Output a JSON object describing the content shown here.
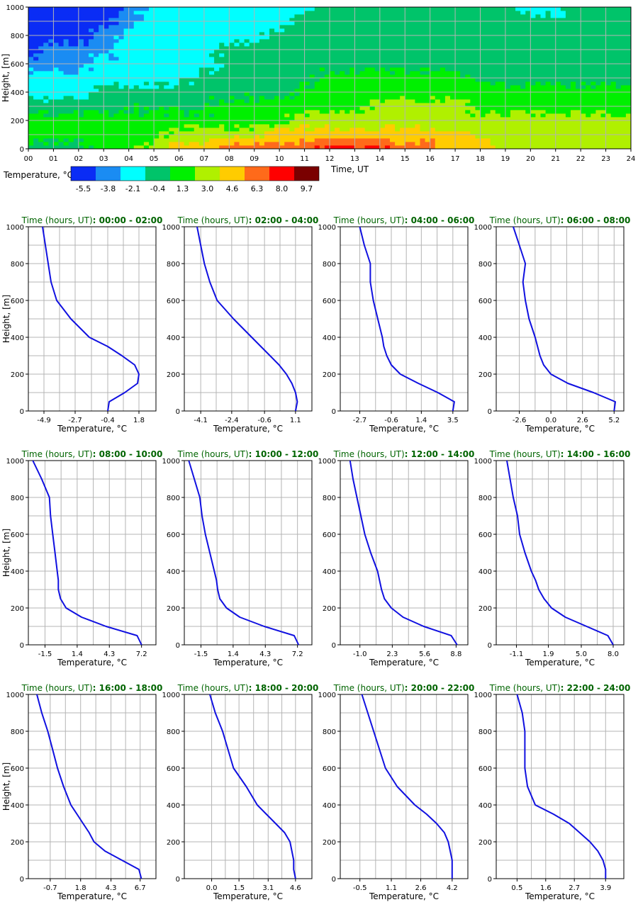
{
  "colors": {
    "levels": [
      "#0a2cf5",
      "#1a8cf3",
      "#00ffff",
      "#00c46a",
      "#00f000",
      "#b0f000",
      "#ffcc00",
      "#ff6a1a",
      "#ff0000",
      "#7a0000"
    ],
    "profile_line": "#1010e0",
    "panel_title": "#006400",
    "grid": "#b4b4b4"
  },
  "heatmap": {
    "ylabel": "Height, [m]",
    "xlabel": "Time, UT",
    "yticks": [
      "0",
      "200",
      "400",
      "600",
      "800",
      "1000"
    ],
    "xticks": [
      "00",
      "01",
      "02",
      "03",
      "04",
      "05",
      "06",
      "07",
      "08",
      "09",
      "10",
      "11",
      "12",
      "13",
      "14",
      "15",
      "16",
      "17",
      "18",
      "19",
      "20",
      "21",
      "22",
      "23",
      "24"
    ]
  },
  "colorbar": {
    "label": "Temperature, °C",
    "ticks": [
      "-5.5",
      "-3.8",
      "-2.1",
      "-0.4",
      "1.3",
      "3.0",
      "4.6",
      "6.3",
      "8.0",
      "9.7"
    ]
  },
  "profiles": {
    "ylabel": "Height, [m]",
    "xlabel": "Temperature, °C",
    "yticks": [
      "0",
      "200",
      "400",
      "600",
      "800",
      "1000"
    ]
  },
  "chart_data": [
    {
      "type": "heatmap",
      "xlabel": "Time, UT",
      "ylabel": "Height, [m]",
      "x_range": [
        0,
        24
      ],
      "y_range": [
        0,
        1000
      ],
      "colorbar_label": "Temperature, °C",
      "levels": [
        -5.5,
        -3.8,
        -2.1,
        -0.4,
        1.3,
        3.0,
        4.6,
        6.3,
        8.0,
        9.7
      ],
      "grid": true,
      "heights_m": [
        0,
        100,
        200,
        300,
        400,
        500,
        600,
        700,
        800,
        900,
        1000
      ],
      "hourly_profiles": [
        [
          -0.4,
          1.3,
          1.3,
          -0.4,
          -2.1,
          -2.1,
          -3.8,
          -5.5,
          -5.5,
          -5.5,
          -5.5
        ],
        [
          -0.4,
          1.3,
          1.3,
          -0.4,
          -2.1,
          -2.1,
          -3.8,
          -3.8,
          -5.5,
          -5.5,
          -5.5
        ],
        [
          -0.4,
          1.3,
          1.3,
          0.0,
          -2.1,
          -2.1,
          -3.8,
          -3.8,
          -5.5,
          -5.5,
          -5.5
        ],
        [
          1.3,
          1.3,
          1.3,
          0.0,
          -0.4,
          -2.1,
          -2.1,
          -3.8,
          -3.8,
          -5.5,
          -5.5
        ],
        [
          1.5,
          1.3,
          1.3,
          0.0,
          -0.4,
          -2.1,
          -2.1,
          -2.1,
          -2.1,
          -3.8,
          -3.8
        ],
        [
          3.0,
          1.3,
          1.3,
          0.0,
          -0.4,
          -2.1,
          -2.1,
          -2.1,
          -2.1,
          -2.1,
          -2.1
        ],
        [
          4.6,
          3.0,
          1.3,
          0.0,
          -0.4,
          -2.1,
          -2.1,
          -2.1,
          -2.1,
          -2.1,
          -2.1
        ],
        [
          4.6,
          3.0,
          1.3,
          0.0,
          -0.4,
          -0.4,
          -2.1,
          -2.1,
          -2.1,
          -2.1,
          -2.1
        ],
        [
          6.3,
          3.0,
          1.3,
          1.3,
          -0.4,
          -0.4,
          -0.4,
          -0.4,
          -2.1,
          -2.1,
          -2.1
        ],
        [
          6.3,
          3.0,
          1.3,
          1.3,
          0.0,
          -0.4,
          -0.4,
          -0.4,
          -2.1,
          -2.1,
          -2.1
        ],
        [
          6.3,
          4.6,
          1.3,
          1.3,
          0.0,
          -0.4,
          -0.4,
          -0.4,
          -0.4,
          -2.1,
          -2.1
        ],
        [
          6.3,
          4.6,
          3.0,
          1.3,
          1.3,
          -0.4,
          -0.4,
          -0.4,
          -0.4,
          -0.4,
          -2.1
        ],
        [
          8.0,
          4.6,
          3.0,
          1.3,
          1.3,
          1.3,
          -0.4,
          -0.4,
          -0.4,
          -0.4,
          -0.4
        ],
        [
          8.0,
          4.6,
          3.0,
          1.3,
          1.3,
          1.3,
          -0.4,
          -0.4,
          -0.4,
          -0.4,
          -0.4
        ],
        [
          8.0,
          4.6,
          3.0,
          3.0,
          1.3,
          1.3,
          -0.4,
          -0.4,
          -0.4,
          -0.4,
          -0.4
        ],
        [
          6.3,
          4.6,
          3.0,
          3.0,
          1.3,
          1.3,
          -0.4,
          -0.4,
          -0.4,
          -0.4,
          -0.4
        ],
        [
          6.3,
          4.6,
          3.0,
          3.0,
          1.3,
          1.3,
          -0.4,
          -0.4,
          -0.4,
          -0.4,
          -0.4
        ],
        [
          4.6,
          4.6,
          3.0,
          3.0,
          1.3,
          1.3,
          -0.4,
          -0.4,
          -0.4,
          -0.4,
          -0.4
        ],
        [
          4.6,
          3.0,
          3.0,
          1.3,
          1.3,
          -0.4,
          -0.4,
          -0.4,
          -0.4,
          -0.4,
          -0.4
        ],
        [
          3.0,
          3.0,
          3.0,
          1.3,
          1.3,
          -0.4,
          -0.4,
          -0.4,
          -0.4,
          -0.4,
          -0.4
        ],
        [
          3.0,
          3.0,
          3.0,
          1.3,
          1.3,
          -0.4,
          -0.4,
          -0.4,
          -0.4,
          -0.4,
          -2.1
        ],
        [
          3.0,
          3.0,
          3.0,
          1.3,
          1.3,
          -0.4,
          -0.4,
          -0.4,
          -0.4,
          -0.4,
          -2.1
        ],
        [
          3.0,
          3.0,
          3.0,
          1.3,
          1.3,
          -0.4,
          -0.4,
          -0.4,
          -0.4,
          -0.4,
          -0.4
        ],
        [
          3.0,
          3.0,
          3.0,
          1.3,
          1.3,
          -0.4,
          -0.4,
          -0.4,
          -0.4,
          -0.4,
          -0.4
        ]
      ]
    },
    {
      "type": "line",
      "title_prefix": "Time (hours, UT)",
      "title_range": ": 00:00 - 02:00",
      "xlabel": "Temperature, °C",
      "ylabel": "Height, [m]",
      "ylim": [
        0,
        1000
      ],
      "grid": true,
      "xticks": [
        -4.9,
        -2.7,
        -0.4,
        1.8
      ],
      "xlim": [
        -6.0,
        3.0
      ],
      "x": [
        -0.4,
        -0.3,
        0.8,
        1.7,
        1.8,
        1.5,
        0.6,
        -0.4,
        -1.7,
        -3.0,
        -4.0,
        -4.4,
        -4.6,
        -4.8,
        -5.0
      ],
      "y": [
        0,
        50,
        100,
        150,
        200,
        250,
        300,
        350,
        400,
        500,
        600,
        700,
        800,
        900,
        1000
      ]
    },
    {
      "type": "line",
      "title_prefix": "Time (hours, UT)",
      "title_range": ": 02:00 - 04:00",
      "xlabel": "Temperature, °C",
      "ylabel": "Height, [m]",
      "ylim": [
        0,
        1000
      ],
      "grid": true,
      "xticks": [
        -4.1,
        -2.4,
        -0.6,
        1.1
      ],
      "xlim": [
        -5.0,
        2.0
      ],
      "x": [
        1.1,
        1.2,
        1.1,
        0.9,
        0.6,
        0.2,
        -0.3,
        -0.8,
        -1.3,
        -2.3,
        -3.2,
        -3.6,
        -3.9,
        -4.1,
        -4.3
      ],
      "y": [
        0,
        50,
        100,
        150,
        200,
        250,
        300,
        350,
        400,
        500,
        600,
        700,
        800,
        900,
        1000
      ]
    },
    {
      "type": "line",
      "title_prefix": "Time (hours, UT)",
      "title_range": ": 04:00 - 06:00",
      "xlabel": "Temperature, °C",
      "ylabel": "Height, [m]",
      "ylim": [
        0,
        1000
      ],
      "grid": true,
      "xticks": [
        -2.7,
        -0.6,
        1.4,
        3.5
      ],
      "xlim": [
        -4.0,
        4.5
      ],
      "x": [
        3.5,
        3.6,
        2.5,
        1.2,
        0.0,
        -0.6,
        -0.9,
        -1.1,
        -1.2,
        -1.5,
        -1.8,
        -2.0,
        -2.0,
        -2.4,
        -2.7
      ],
      "y": [
        0,
        50,
        100,
        150,
        200,
        250,
        300,
        350,
        400,
        500,
        600,
        700,
        800,
        900,
        1000
      ]
    },
    {
      "type": "line",
      "title_prefix": "Time (hours, UT)",
      "title_range": ": 06:00 - 08:00",
      "xlabel": "Temperature, °C",
      "ylabel": "Height, [m]",
      "ylim": [
        0,
        1000
      ],
      "grid": true,
      "xticks": [
        -2.6,
        0.0,
        2.6,
        5.2
      ],
      "xlim": [
        -4.5,
        6.0
      ],
      "x": [
        5.2,
        5.3,
        3.5,
        1.4,
        0.0,
        -0.6,
        -0.9,
        -1.1,
        -1.3,
        -1.8,
        -2.1,
        -2.3,
        -2.1,
        -2.6,
        -3.1
      ],
      "y": [
        0,
        50,
        100,
        150,
        200,
        250,
        300,
        350,
        400,
        500,
        600,
        700,
        800,
        900,
        1000
      ]
    },
    {
      "type": "line",
      "title_prefix": "Time (hours, UT)",
      "title_range": ": 08:00 - 10:00",
      "xlabel": "Temperature, °C",
      "ylabel": "Height, [m]",
      "ylim": [
        0,
        1000
      ],
      "grid": true,
      "xticks": [
        -1.5,
        1.4,
        4.3,
        7.2
      ],
      "xlim": [
        -3.0,
        8.5
      ],
      "x": [
        7.2,
        6.8,
        4.0,
        1.8,
        0.4,
        -0.1,
        -0.3,
        -0.3,
        -0.4,
        -0.6,
        -0.8,
        -1.0,
        -1.1,
        -1.8,
        -2.6
      ],
      "y": [
        0,
        50,
        100,
        150,
        200,
        250,
        300,
        350,
        400,
        500,
        600,
        700,
        800,
        900,
        1000
      ]
    },
    {
      "type": "line",
      "title_prefix": "Time (hours, UT)",
      "title_range": ": 10:00 - 12:00",
      "xlabel": "Temperature, °C",
      "ylabel": "Height, [m]",
      "ylim": [
        0,
        1000
      ],
      "grid": true,
      "xticks": [
        -1.5,
        1.4,
        4.3,
        7.2
      ],
      "xlim": [
        -3.0,
        8.5
      ],
      "x": [
        7.3,
        6.9,
        4.2,
        2.0,
        0.8,
        0.2,
        0.0,
        -0.1,
        -0.3,
        -0.7,
        -1.1,
        -1.4,
        -1.6,
        -2.1,
        -2.6
      ],
      "y": [
        0,
        50,
        100,
        150,
        200,
        250,
        300,
        350,
        400,
        500,
        600,
        700,
        800,
        900,
        1000
      ]
    },
    {
      "type": "line",
      "title_prefix": "Time (hours, UT)",
      "title_range": ": 12:00 - 14:00",
      "xlabel": "Temperature, °C",
      "ylabel": "Height, [m]",
      "ylim": [
        0,
        1000
      ],
      "grid": true,
      "xticks": [
        -1.0,
        2.3,
        5.6,
        8.8
      ],
      "xlim": [
        -3.0,
        10.0
      ],
      "x": [
        8.9,
        8.3,
        5.5,
        3.4,
        2.2,
        1.5,
        1.2,
        1.0,
        0.8,
        0.1,
        -0.5,
        -0.9,
        -1.3,
        -1.7,
        -2.0
      ],
      "y": [
        0,
        50,
        100,
        150,
        200,
        250,
        300,
        350,
        400,
        500,
        600,
        700,
        800,
        900,
        1000
      ]
    },
    {
      "type": "line",
      "title_prefix": "Time (hours, UT)",
      "title_range": ": 14:00 - 16:00",
      "xlabel": "Temperature, °C",
      "ylabel": "Height, [m]",
      "ylim": [
        0,
        1000
      ],
      "grid": true,
      "xticks": [
        -1.1,
        1.9,
        5.0,
        8.0
      ],
      "xlim": [
        -3.0,
        9.0
      ],
      "x": [
        8.0,
        7.5,
        5.5,
        3.5,
        2.2,
        1.5,
        1.0,
        0.7,
        0.3,
        -0.3,
        -0.8,
        -1.0,
        -1.4,
        -1.7,
        -2.0
      ],
      "y": [
        0,
        50,
        100,
        150,
        200,
        250,
        300,
        350,
        400,
        500,
        600,
        700,
        800,
        900,
        1000
      ]
    },
    {
      "type": "line",
      "title_prefix": "Time (hours, UT)",
      "title_range": ": 16:00 - 18:00",
      "xlabel": "Temperature, °C",
      "ylabel": "Height, [m]",
      "ylim": [
        0,
        1000
      ],
      "grid": true,
      "xticks": [
        -0.7,
        1.8,
        4.3,
        6.7
      ],
      "xlim": [
        -2.5,
        8.0
      ],
      "x": [
        6.8,
        6.6,
        5.2,
        3.8,
        2.9,
        2.5,
        2.0,
        1.5,
        1.0,
        0.4,
        -0.1,
        -0.5,
        -0.9,
        -1.4,
        -1.8
      ],
      "y": [
        0,
        50,
        100,
        150,
        200,
        250,
        300,
        350,
        400,
        500,
        600,
        700,
        800,
        900,
        1000
      ]
    },
    {
      "type": "line",
      "title_prefix": "Time (hours, UT)",
      "title_range": ": 18:00 - 20:00",
      "xlabel": "Temperature, °C",
      "ylabel": "Height, [m]",
      "ylim": [
        0,
        1000
      ],
      "grid": true,
      "xticks": [
        -0.0,
        1.5,
        3.1,
        4.6
      ],
      "xlim": [
        -1.5,
        5.5
      ],
      "x": [
        4.6,
        4.5,
        4.5,
        4.4,
        4.3,
        4.0,
        3.5,
        3.0,
        2.5,
        1.9,
        1.2,
        0.9,
        0.6,
        0.2,
        -0.1
      ],
      "y": [
        0,
        50,
        100,
        150,
        200,
        250,
        300,
        350,
        400,
        500,
        600,
        700,
        800,
        900,
        1000
      ]
    },
    {
      "type": "line",
      "title_prefix": "Time (hours, UT)",
      "title_range": ": 20:00 - 22:00",
      "xlabel": "Temperature, °C",
      "ylabel": "Height, [m]",
      "ylim": [
        0,
        1000
      ],
      "grid": true,
      "xticks": [
        -0.5,
        1.1,
        2.6,
        4.2
      ],
      "xlim": [
        -1.5,
        5.0
      ],
      "x": [
        4.2,
        4.2,
        4.2,
        4.1,
        4.0,
        3.8,
        3.4,
        2.9,
        2.3,
        1.4,
        0.8,
        0.5,
        0.2,
        -0.1,
        -0.4
      ],
      "y": [
        0,
        50,
        100,
        150,
        200,
        250,
        300,
        350,
        400,
        500,
        600,
        700,
        800,
        900,
        1000
      ]
    },
    {
      "type": "line",
      "title_prefix": "Time (hours, UT)",
      "title_range": ": 22:00 - 24:00",
      "xlabel": "Temperature, °C",
      "ylabel": "Height, [m]",
      "ylim": [
        0,
        1000
      ],
      "grid": true,
      "xticks": [
        0.5,
        1.6,
        2.7,
        3.9
      ],
      "xlim": [
        -0.3,
        4.6
      ],
      "x": [
        3.9,
        3.9,
        3.8,
        3.6,
        3.3,
        2.9,
        2.5,
        1.9,
        1.2,
        0.9,
        0.8,
        0.8,
        0.8,
        0.7,
        0.5
      ],
      "y": [
        0,
        50,
        100,
        150,
        200,
        250,
        300,
        350,
        400,
        500,
        600,
        700,
        800,
        900,
        1000
      ]
    }
  ]
}
